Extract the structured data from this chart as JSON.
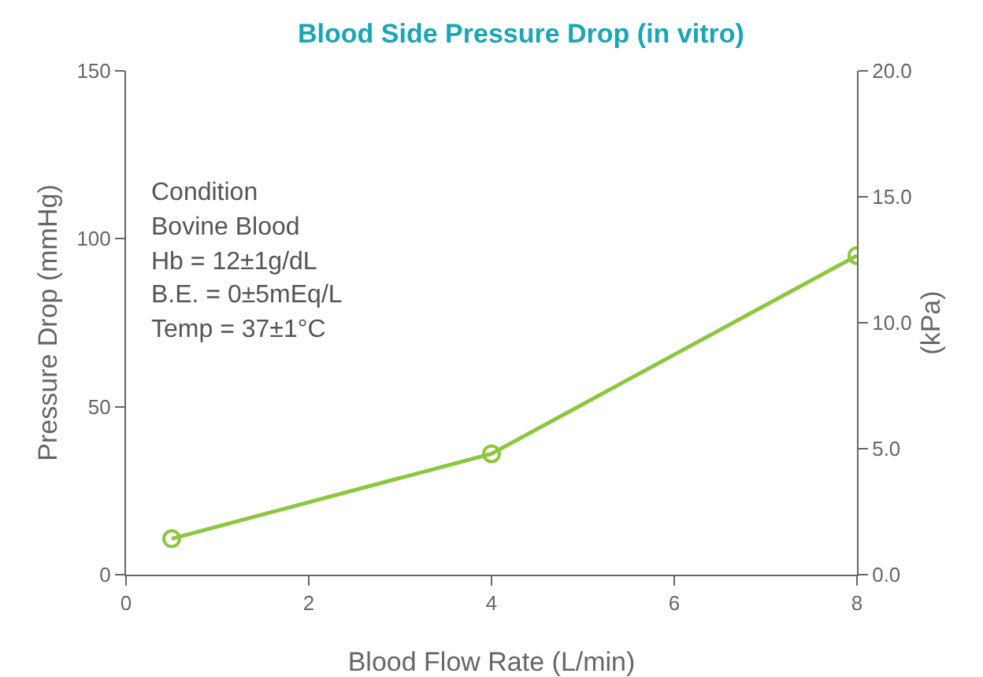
{
  "chart_data": {
    "type": "line",
    "title": "Blood Side Pressure Drop (in vitro)",
    "xlabel": "Blood Flow Rate (L/min)",
    "ylabel": "Pressure Drop (mmHg)",
    "y2label": "(kPa)",
    "x": [
      0.5,
      4,
      8
    ],
    "series": [
      {
        "color": "#8dc63f",
        "values": [
          10.7,
          36,
          95
        ]
      }
    ],
    "xlim": [
      0,
      8
    ],
    "xticks": [
      0,
      2,
      4,
      6,
      8
    ],
    "ylim": [
      0,
      150
    ],
    "yticks": [
      0,
      50,
      100,
      150
    ],
    "y2lim": [
      0,
      20
    ],
    "y2ticks": [
      {
        "value": 0,
        "label": "0.0"
      },
      {
        "value": 5,
        "label": "5.0"
      },
      {
        "value": 10,
        "label": "10.0"
      },
      {
        "value": 15,
        "label": "15.0"
      },
      {
        "value": 20,
        "label": "20.0"
      }
    ],
    "marker": "circle",
    "line_style": "solid",
    "grid": false,
    "legend": false,
    "annotations": [
      "Condition",
      "Bovine Blood",
      "Hb = 12±1g/dL",
      "B.E. = 0±5mEq/L",
      "Temp = 37±1°C"
    ]
  }
}
